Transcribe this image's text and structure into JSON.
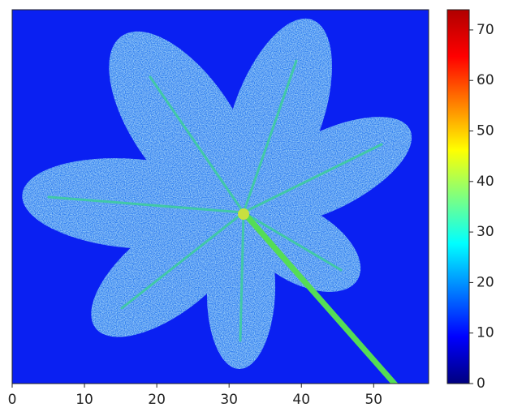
{
  "chart_data": {
    "type": "image",
    "xlim": [
      0,
      57.6
    ],
    "xticks": [
      0,
      10,
      20,
      30,
      40,
      50
    ],
    "background_color": "#0a20f2",
    "colorbar": {
      "lim": [
        0,
        74
      ],
      "ticks": [
        0,
        10,
        20,
        30,
        40,
        50,
        60,
        70
      ],
      "colormap": [
        "#00007f",
        "#0000ff",
        "#007fff",
        "#00ffff",
        "#7fff7f",
        "#ffff00",
        "#ff7f00",
        "#ff0000",
        "#b00000"
      ]
    }
  }
}
